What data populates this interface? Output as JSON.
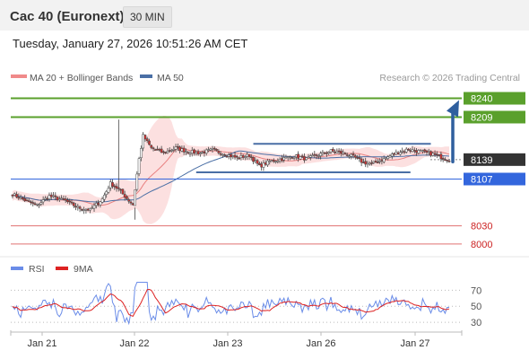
{
  "header": {
    "title": "Cac 40 (Euronext)",
    "timeframe": "30 MIN"
  },
  "datetime": "Tuesday, January 27, 2026 10:51:26 AM CET",
  "legend": {
    "bollinger": "MA 20 + Bollinger Bands",
    "ma50": "MA 50",
    "copyright": "Research © 2026 Trading Central",
    "rsi": "RSI",
    "rsi_ma": "9MA"
  },
  "colors": {
    "resistance": "#5aa02c",
    "support_blue": "#3366dd",
    "support_red": "#e07070",
    "current": "#333333",
    "candle_up": "#ffffff",
    "candle_down": "#cc3333",
    "bollinger_fill": "#fbdada",
    "ma20": "#e88080",
    "ma50": "#4a6fa5",
    "rsi": "#6a8ce8",
    "rsi_ma": "#dd2222",
    "arrow": "#2f5f9e"
  },
  "chart_data": [
    {
      "type": "candlestick",
      "title": "Cac 40 (Euronext)",
      "timeframe": "30 MIN",
      "x_tick_labels": [
        "Jan 21",
        "Jan 22",
        "Jan 23",
        "Jan 26",
        "Jan 27"
      ],
      "y_range": [
        7985,
        8260
      ],
      "levels": [
        {
          "value": 8240,
          "label": "8240",
          "kind": "resistance"
        },
        {
          "value": 8209,
          "label": "8209",
          "kind": "resistance"
        },
        {
          "value": 8139,
          "label": "8139",
          "kind": "current"
        },
        {
          "value": 8107,
          "label": "8107",
          "kind": "pivot"
        },
        {
          "value": 8030,
          "label": "8030",
          "kind": "support"
        },
        {
          "value": 8000,
          "label": "8000",
          "kind": "support"
        }
      ],
      "trading_range": {
        "top": 8165,
        "bottom": 8118
      },
      "forecast_target": 8240,
      "series": [
        {
          "name": "MA 20 + Bollinger Bands"
        },
        {
          "name": "MA 50"
        }
      ]
    },
    {
      "type": "line",
      "y_tick_labels": [
        "70",
        "50",
        "30"
      ],
      "y_ticks": [
        70,
        50,
        30
      ],
      "y_range": [
        20,
        85
      ],
      "series": [
        {
          "name": "RSI"
        },
        {
          "name": "9MA"
        }
      ]
    }
  ]
}
